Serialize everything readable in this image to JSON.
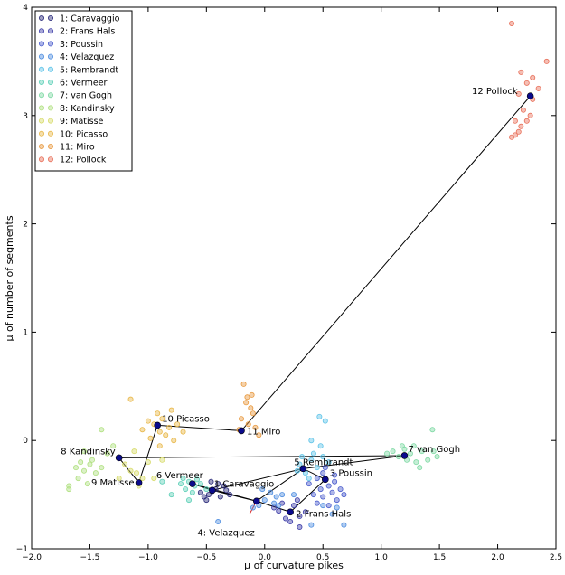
{
  "chart_data": {
    "type": "scatter",
    "xlabel": "μ of curvature pikes",
    "ylabel": "μ of number of segments",
    "xlim": [
      -2.0,
      2.5
    ],
    "ylim": [
      -1.0,
      4.0
    ],
    "xticks": [
      -2.0,
      -1.5,
      -1.0,
      -0.5,
      0.0,
      0.5,
      1.0,
      1.5,
      2.0,
      2.5
    ],
    "xtick_labels": [
      "−2.0",
      "−1.5",
      "−1.0",
      "−0.5",
      "0.0",
      "0.5",
      "1.0",
      "1.5",
      "2.0",
      "2.5"
    ],
    "yticks": [
      -1,
      0,
      1,
      2,
      3,
      4
    ],
    "ytick_labels": [
      "−1",
      "0",
      "1",
      "2",
      "3",
      "4"
    ],
    "legend_position": "top-left",
    "series": [
      {
        "name": "1: Caravaggio",
        "color": "#2a2a7a",
        "points": [
          [
            -0.52,
            -0.52
          ],
          [
            -0.48,
            -0.5
          ],
          [
            -0.45,
            -0.47
          ],
          [
            -0.42,
            -0.45
          ],
          [
            -0.38,
            -0.52
          ],
          [
            -0.35,
            -0.42
          ],
          [
            -0.4,
            -0.4
          ],
          [
            -0.5,
            -0.55
          ],
          [
            -0.3,
            -0.5
          ],
          [
            -0.55,
            -0.48
          ],
          [
            -0.46,
            -0.38
          ],
          [
            -0.33,
            -0.46
          ]
        ]
      },
      {
        "name": "2: Frans Hals",
        "color": "#3d3da8",
        "points": [
          [
            0.12,
            -0.65
          ],
          [
            0.18,
            -0.72
          ],
          [
            0.25,
            -0.6
          ],
          [
            0.3,
            -0.7
          ],
          [
            0.15,
            -0.58
          ],
          [
            0.22,
            -0.75
          ],
          [
            0.3,
            -0.8
          ],
          [
            0.08,
            -0.62
          ],
          [
            0.35,
            -0.66
          ],
          [
            0.28,
            -0.55
          ]
        ]
      },
      {
        "name": "3: Poussin",
        "color": "#4a5ccc",
        "points": [
          [
            0.45,
            -0.35
          ],
          [
            0.5,
            -0.3
          ],
          [
            0.55,
            -0.42
          ],
          [
            0.48,
            -0.45
          ],
          [
            0.6,
            -0.38
          ],
          [
            0.52,
            -0.25
          ],
          [
            0.42,
            -0.5
          ],
          [
            0.58,
            -0.48
          ],
          [
            0.62,
            -0.55
          ],
          [
            0.38,
            -0.4
          ],
          [
            0.5,
            -0.52
          ],
          [
            0.65,
            -0.45
          ],
          [
            0.55,
            -0.6
          ],
          [
            0.45,
            -0.58
          ],
          [
            0.68,
            -0.5
          ],
          [
            0.6,
            -0.32
          ]
        ]
      },
      {
        "name": "4: Velazquez",
        "color": "#4f8ee0",
        "points": [
          [
            0.0,
            -0.55
          ],
          [
            -0.05,
            -0.6
          ],
          [
            0.05,
            -0.48
          ],
          [
            0.08,
            -0.58
          ],
          [
            -0.02,
            -0.45
          ],
          [
            0.1,
            -0.52
          ],
          [
            -0.1,
            -0.62
          ],
          [
            0.15,
            -0.5
          ],
          [
            0.12,
            -0.6
          ],
          [
            0.58,
            -0.68
          ],
          [
            0.68,
            -0.78
          ],
          [
            0.4,
            -0.78
          ],
          [
            -0.4,
            -0.75
          ],
          [
            0.5,
            -0.6
          ],
          [
            0.62,
            -0.62
          ],
          [
            0.25,
            -0.5
          ]
        ]
      },
      {
        "name": "5: Rembrandt",
        "color": "#5fc4e8",
        "points": [
          [
            0.3,
            -0.22
          ],
          [
            0.35,
            -0.3
          ],
          [
            0.4,
            -0.18
          ],
          [
            0.28,
            -0.28
          ],
          [
            0.45,
            -0.25
          ],
          [
            0.5,
            -0.15
          ],
          [
            0.38,
            -0.35
          ],
          [
            0.42,
            -0.12
          ],
          [
            0.55,
            -0.2
          ],
          [
            0.48,
            -0.05
          ],
          [
            0.52,
            0.18
          ],
          [
            0.47,
            0.22
          ],
          [
            0.32,
            -0.15
          ],
          [
            0.4,
            0.0
          ]
        ]
      },
      {
        "name": "6: Vermeer",
        "color": "#5fd0b8",
        "points": [
          [
            -0.65,
            -0.38
          ],
          [
            -0.6,
            -0.42
          ],
          [
            -0.7,
            -0.35
          ],
          [
            -0.55,
            -0.4
          ],
          [
            -0.68,
            -0.45
          ],
          [
            -0.58,
            -0.36
          ],
          [
            -0.62,
            -0.48
          ],
          [
            -0.72,
            -0.4
          ],
          [
            -0.5,
            -0.45
          ],
          [
            -0.8,
            -0.5
          ],
          [
            -0.88,
            -0.38
          ],
          [
            -0.65,
            -0.55
          ]
        ]
      },
      {
        "name": "7: van Gogh",
        "color": "#7fd9a4",
        "points": [
          [
            1.1,
            -0.1
          ],
          [
            1.15,
            -0.15
          ],
          [
            1.2,
            -0.08
          ],
          [
            1.25,
            -0.12
          ],
          [
            1.3,
            -0.2
          ],
          [
            1.35,
            -0.1
          ],
          [
            1.18,
            -0.05
          ],
          [
            1.45,
            -0.1
          ],
          [
            1.4,
            -0.18
          ],
          [
            1.28,
            -0.05
          ],
          [
            1.05,
            -0.12
          ],
          [
            1.22,
            -0.18
          ],
          [
            1.48,
            -0.15
          ],
          [
            1.44,
            0.1
          ],
          [
            1.33,
            -0.25
          ]
        ]
      },
      {
        "name": "8: Kandinsky",
        "color": "#b0e080",
        "points": [
          [
            -1.6,
            -0.35
          ],
          [
            -1.55,
            -0.28
          ],
          [
            -1.5,
            -0.22
          ],
          [
            -1.58,
            -0.2
          ],
          [
            -1.45,
            -0.3
          ],
          [
            -1.52,
            -0.4
          ],
          [
            -1.48,
            -0.18
          ],
          [
            -1.62,
            -0.25
          ],
          [
            -1.4,
            -0.25
          ],
          [
            -1.35,
            -0.12
          ],
          [
            -1.3,
            -0.05
          ],
          [
            -1.68,
            -0.45
          ],
          [
            -1.68,
            -0.42
          ],
          [
            -1.55,
            -0.1
          ],
          [
            -1.4,
            0.1
          ]
        ]
      },
      {
        "name": "9: Matisse",
        "color": "#d8dc6c",
        "points": [
          [
            -1.1,
            -0.3
          ],
          [
            -1.05,
            -0.35
          ],
          [
            -1.15,
            -0.28
          ],
          [
            -1.0,
            -0.2
          ],
          [
            -1.08,
            -0.42
          ],
          [
            -1.2,
            -0.22
          ],
          [
            -0.95,
            -0.35
          ],
          [
            -1.12,
            -0.1
          ],
          [
            -1.25,
            -0.35
          ],
          [
            -0.88,
            -0.18
          ]
        ]
      },
      {
        "name": "10: Picasso",
        "color": "#e8b84a",
        "points": [
          [
            -0.95,
            0.15
          ],
          [
            -0.9,
            0.08
          ],
          [
            -0.88,
            0.2
          ],
          [
            -0.85,
            0.05
          ],
          [
            -0.92,
            0.25
          ],
          [
            -0.98,
            0.02
          ],
          [
            -0.82,
            0.12
          ],
          [
            -1.0,
            0.18
          ],
          [
            -0.8,
            0.28
          ],
          [
            -1.05,
            0.1
          ],
          [
            -0.78,
            0.0
          ],
          [
            -0.75,
            0.15
          ],
          [
            -1.15,
            0.38
          ],
          [
            -0.9,
            -0.05
          ],
          [
            -0.7,
            0.08
          ]
        ]
      },
      {
        "name": "11: Miro",
        "color": "#e89a40",
        "points": [
          [
            -0.18,
            0.52
          ],
          [
            -0.15,
            0.4
          ],
          [
            -0.12,
            0.3
          ],
          [
            -0.1,
            0.25
          ],
          [
            -0.14,
            0.15
          ],
          [
            -0.2,
            0.2
          ],
          [
            -0.08,
            0.12
          ],
          [
            -0.16,
            0.35
          ],
          [
            -0.11,
            0.42
          ],
          [
            -0.22,
            0.1
          ],
          [
            -0.05,
            0.05
          ]
        ]
      },
      {
        "name": "12: Pollock",
        "color": "#e8705a",
        "points": [
          [
            2.12,
            3.85
          ],
          [
            2.2,
            3.4
          ],
          [
            2.25,
            3.3
          ],
          [
            2.18,
            3.2
          ],
          [
            2.3,
            3.15
          ],
          [
            2.22,
            3.05
          ],
          [
            2.15,
            2.95
          ],
          [
            2.2,
            2.9
          ],
          [
            2.28,
            3.0
          ],
          [
            2.35,
            3.25
          ],
          [
            2.42,
            3.5
          ],
          [
            2.18,
            2.85
          ],
          [
            2.12,
            2.8
          ],
          [
            2.15,
            2.82
          ],
          [
            2.25,
            2.95
          ],
          [
            2.3,
            3.35
          ]
        ]
      }
    ],
    "centroids": [
      {
        "label": "1 Caravaggio",
        "x": -0.45,
        "y": -0.46
      },
      {
        "label": "2 Frans Hals",
        "x": 0.22,
        "y": -0.66
      },
      {
        "label": "3 Poussin",
        "x": 0.52,
        "y": -0.36
      },
      {
        "label": "4: Velazquez",
        "x": -0.07,
        "y": -0.56
      },
      {
        "label": "5 Rembrandt",
        "x": 0.33,
        "y": -0.26
      },
      {
        "label": "6 Vermeer",
        "x": -0.62,
        "y": -0.4
      },
      {
        "label": "7 van Gogh",
        "x": 1.2,
        "y": -0.14
      },
      {
        "label": "8 Kandinsky",
        "x": -1.25,
        "y": -0.16
      },
      {
        "label": "9 Matisse",
        "x": -1.08,
        "y": -0.39
      },
      {
        "label": "10 Picasso",
        "x": -0.92,
        "y": 0.14
      },
      {
        "label": "11 Miro",
        "x": -0.2,
        "y": 0.09
      },
      {
        "label": "12 Pollock",
        "x": 2.28,
        "y": 3.18
      }
    ],
    "path_order": [
      1,
      6,
      4,
      2,
      3,
      5,
      1,
      4,
      5,
      7,
      8,
      9,
      10,
      11,
      12
    ]
  }
}
